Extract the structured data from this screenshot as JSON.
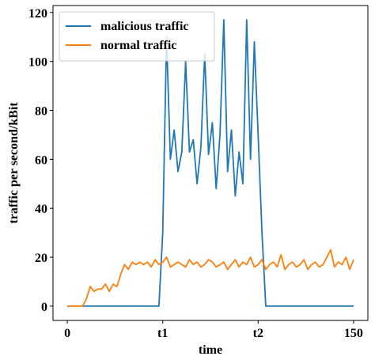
{
  "chart_data": {
    "type": "line",
    "xlabel": "time",
    "ylabel": "traffic per second/kBit",
    "x": [
      0,
      2,
      4,
      6,
      8,
      10,
      12,
      14,
      16,
      18,
      20,
      22,
      24,
      26,
      28,
      30,
      32,
      34,
      36,
      38,
      40,
      42,
      44,
      46,
      48,
      50,
      52,
      54,
      56,
      58,
      60,
      62,
      64,
      66,
      68,
      70,
      72,
      74,
      76,
      78,
      80,
      82,
      84,
      86,
      88,
      90,
      92,
      94,
      96,
      98,
      100,
      102,
      104,
      106,
      108,
      110,
      112,
      114,
      116,
      118,
      120,
      122,
      124,
      126,
      128,
      130,
      132,
      134,
      136,
      138,
      140,
      142,
      144,
      146,
      148,
      150
    ],
    "series": [
      {
        "name": "malicious traffic",
        "color": "#1f77b4",
        "values": [
          0,
          0,
          0,
          0,
          0,
          0,
          0,
          0,
          0,
          0,
          0,
          0,
          0,
          0,
          0,
          0,
          0,
          0,
          0,
          0,
          0,
          0,
          0,
          0,
          0,
          30,
          110,
          60,
          72,
          55,
          63,
          100,
          63,
          68,
          50,
          65,
          103,
          62,
          75,
          48,
          70,
          117,
          55,
          72,
          45,
          63,
          50,
          117,
          60,
          108,
          70,
          30,
          0,
          0,
          0,
          0,
          0,
          0,
          0,
          0,
          0,
          0,
          0,
          0,
          0,
          0,
          0,
          0,
          0,
          0,
          0,
          0,
          0,
          0,
          0,
          0
        ]
      },
      {
        "name": "normal traffic",
        "color": "#ff7f0e",
        "values": [
          0,
          0,
          0,
          0,
          0,
          3,
          8,
          6,
          7,
          7,
          9,
          6,
          9,
          8,
          13,
          17,
          15,
          18,
          17,
          18,
          17,
          18,
          16,
          19,
          17,
          18,
          20,
          16,
          17,
          18,
          17,
          16,
          19,
          17,
          18,
          16,
          17,
          19,
          18,
          16,
          17,
          18,
          15,
          17,
          19,
          16,
          18,
          17,
          20,
          16,
          17,
          19,
          15,
          17,
          18,
          16,
          21,
          15,
          17,
          18,
          16,
          17,
          19,
          15,
          17,
          18,
          16,
          17,
          20,
          23,
          16,
          18,
          17,
          20,
          15,
          19
        ]
      }
    ],
    "xlim": [
      -7.5,
      157.5
    ],
    "xticks": [
      0,
      {
        "value": 50,
        "label": "t1"
      },
      {
        "value": 100,
        "label": "t2"
      },
      150
    ],
    "ylim": [
      -5.85,
      122.85
    ],
    "yticks": [
      0,
      20,
      40,
      60,
      80,
      100,
      120
    ],
    "grid": false,
    "legend": "upper left"
  }
}
